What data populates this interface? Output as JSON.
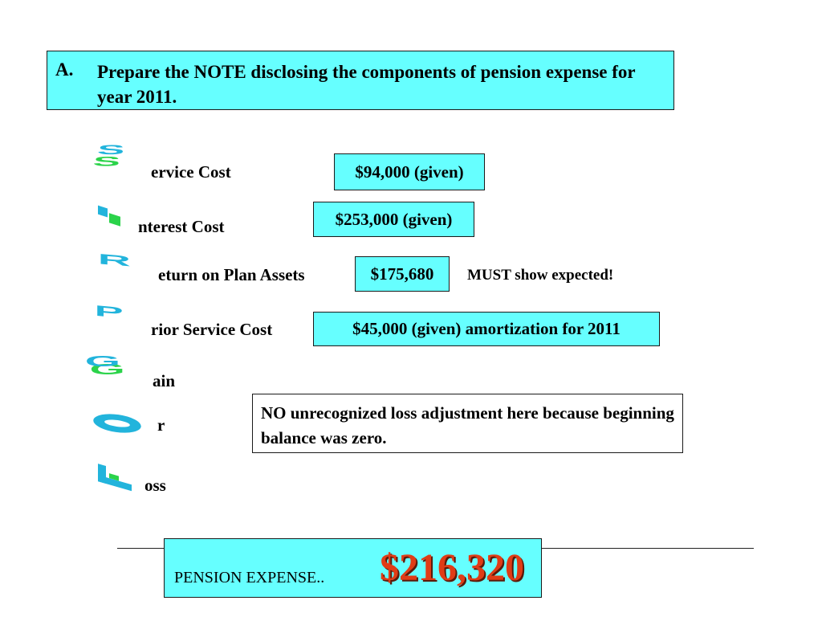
{
  "title": {
    "marker": "A.",
    "text": "Prepare the NOTE disclosing the components of pension expense for year 2011."
  },
  "components": [
    {
      "initial": "S",
      "rest": "ervice Cost",
      "value": "$94,000 (given)"
    },
    {
      "initial": "I",
      "rest": "nterest Cost",
      "value": "$253,000 (given)"
    },
    {
      "initial": "R",
      "rest": "eturn on Plan Assets",
      "value": "$175,680",
      "note": "MUST show expected!"
    },
    {
      "initial": "P",
      "rest": "rior Service Cost",
      "value": "$45,000 (given) amortization for 2011"
    },
    {
      "initial": "G",
      "rest": "ain"
    },
    {
      "initial": "O",
      "rest": "r"
    },
    {
      "initial": "L",
      "rest": "oss"
    }
  ],
  "gain_loss_note": "NO unrecognized loss adjustment here because beginning balance was zero.",
  "pension_expense": {
    "label": "PENSION EXPENSE..",
    "value": "$216,320"
  },
  "colors": {
    "box_fill": "#66ffff",
    "expense_value": "#e03c16",
    "letter_primary": "#22b4dc",
    "letter_secondary": "#2bd34a"
  }
}
